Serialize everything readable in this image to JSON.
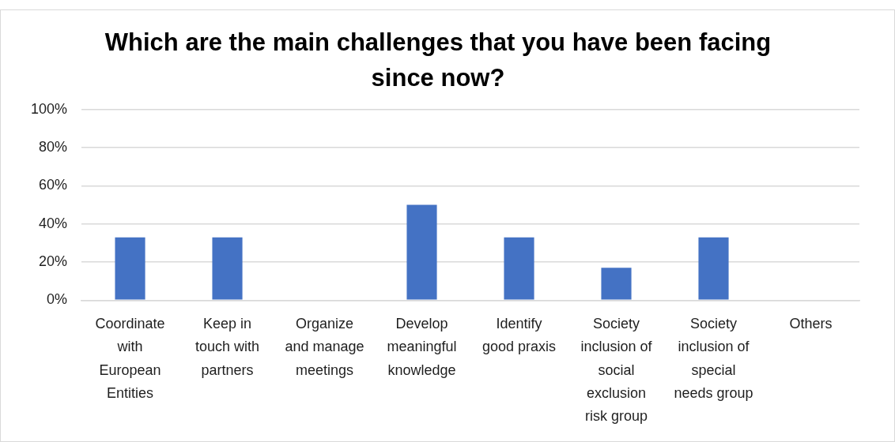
{
  "chart_data": {
    "type": "bar",
    "title": "Which are the main challenges that you have been facing since now?",
    "categories": [
      "Coordinate with European Entities",
      "Keep in touch with partners",
      "Organize and manage meetings",
      "Develop meaningful knowledge",
      "Identify good praxis",
      "Society inclusion of social exclusion risk group",
      "Society inclusion of special needs group",
      "Others"
    ],
    "values": [
      33,
      33,
      0,
      50,
      33,
      17,
      33,
      0
    ],
    "color": "#4472c4",
    "ylim": [
      0,
      100
    ],
    "yticks": [
      {
        "value": 0,
        "label": "0%"
      },
      {
        "value": 20,
        "label": "20%"
      },
      {
        "value": 40,
        "label": "40%"
      },
      {
        "value": 60,
        "label": "60%"
      },
      {
        "value": 80,
        "label": "80%"
      },
      {
        "value": 100,
        "label": "100%"
      }
    ],
    "grid": "y",
    "legend": false
  }
}
